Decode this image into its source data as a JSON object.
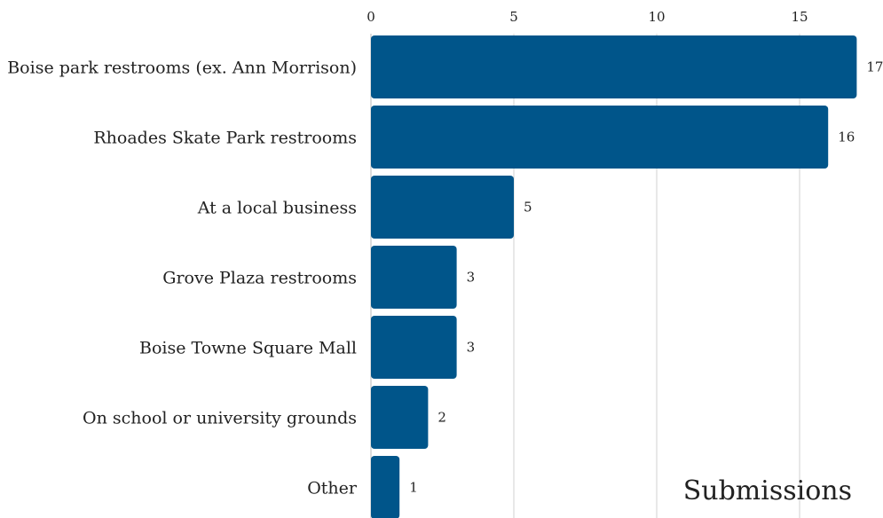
{
  "colors": {
    "bar": "#00558A",
    "grid": "#D0D0D0",
    "text": "#222222",
    "background": "#FFFFFF"
  },
  "chart_data": {
    "type": "bar",
    "orientation": "horizontal",
    "categories": [
      "Boise park restrooms (ex. Ann Morrison)",
      "Rhoades Skate Park restrooms",
      "At a local business",
      "Grove Plaza restrooms",
      "Boise Towne Square Mall",
      "On school or university grounds",
      "Other"
    ],
    "values": [
      17,
      16,
      5,
      3,
      3,
      2,
      1
    ],
    "xlabel": "Submissions",
    "ylabel": "",
    "title": "",
    "xlim": [
      0,
      17
    ],
    "x_ticks": [
      0,
      5,
      10,
      15
    ],
    "x_axis_position": "top",
    "grid": true,
    "legend": "none"
  }
}
